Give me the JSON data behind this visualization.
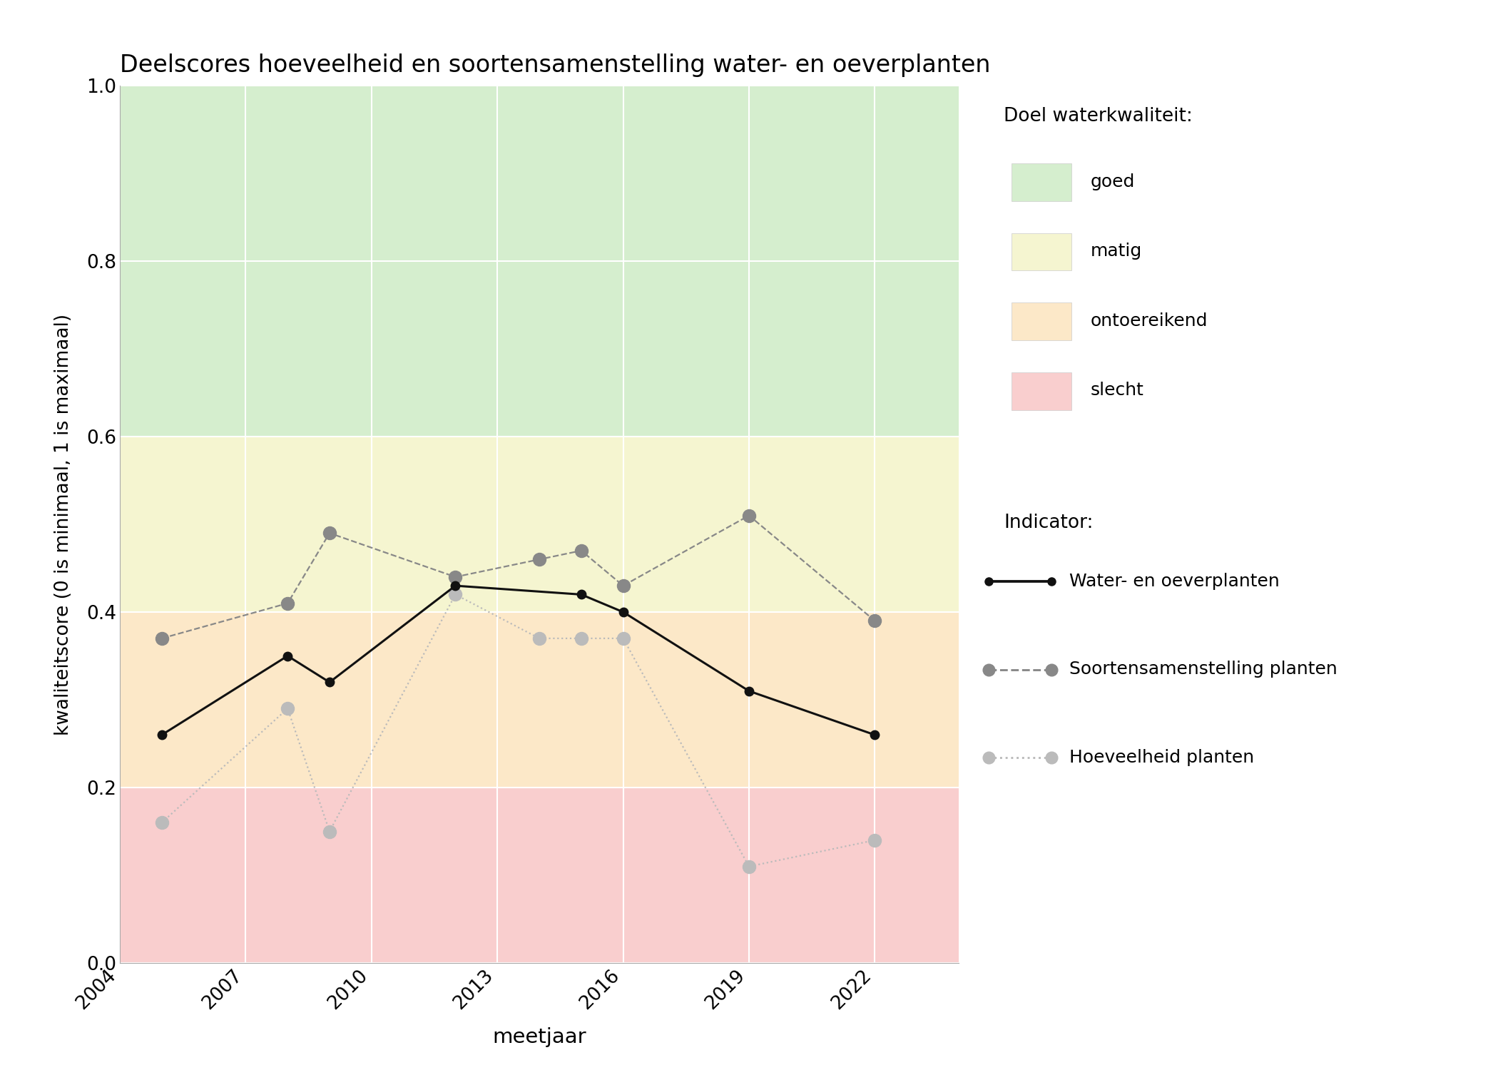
{
  "title": "Deelscores hoeveelheid en soortensamenstelling water- en oeverplanten",
  "xlabel": "meetjaar",
  "ylabel": "kwaliteitscore (0 is minimaal, 1 is maximaal)",
  "ylim": [
    0.0,
    1.0
  ],
  "xlim": [
    2004,
    2024
  ],
  "xticks": [
    2004,
    2007,
    2010,
    2013,
    2016,
    2019,
    2022
  ],
  "yticks": [
    0.0,
    0.2,
    0.4,
    0.6,
    0.8,
    1.0
  ],
  "bg_color": "#ffffff",
  "plot_bg_color": "#ffffff",
  "quality_bands": {
    "goed": {
      "ymin": 0.6,
      "ymax": 1.0,
      "color": "#d5eece"
    },
    "matig": {
      "ymin": 0.4,
      "ymax": 0.6,
      "color": "#f5f5d0"
    },
    "ontoereikend": {
      "ymin": 0.2,
      "ymax": 0.4,
      "color": "#fce8c8"
    },
    "slecht": {
      "ymin": 0.0,
      "ymax": 0.2,
      "color": "#f9cece"
    }
  },
  "series": {
    "water_oeverplanten": {
      "years": [
        2005,
        2008,
        2009,
        2012,
        2015,
        2016,
        2019,
        2022
      ],
      "values": [
        0.26,
        0.35,
        0.32,
        0.43,
        0.42,
        0.4,
        0.31,
        0.26
      ],
      "color": "#111111",
      "linestyle": "solid",
      "linewidth": 2.2,
      "markersize": 9,
      "marker": "o",
      "label": "Water- en oeverplanten",
      "zorder": 5
    },
    "soortensamenstelling": {
      "years": [
        2005,
        2008,
        2009,
        2012,
        2014,
        2015,
        2016,
        2019,
        2022
      ],
      "values": [
        0.37,
        0.41,
        0.49,
        0.44,
        0.46,
        0.47,
        0.43,
        0.51,
        0.39
      ],
      "color": "#888888",
      "linestyle": "dashed",
      "linewidth": 1.6,
      "markersize": 13,
      "marker": "o",
      "label": "Soortensamenstelling planten",
      "zorder": 4
    },
    "hoeveelheid": {
      "years": [
        2005,
        2008,
        2009,
        2012,
        2014,
        2015,
        2016,
        2019,
        2022
      ],
      "values": [
        0.16,
        0.29,
        0.15,
        0.42,
        0.37,
        0.37,
        0.37,
        0.11,
        0.14
      ],
      "color": "#bbbbbb",
      "linestyle": "dotted",
      "linewidth": 1.6,
      "markersize": 13,
      "marker": "o",
      "label": "Hoeveelheid planten",
      "zorder": 3
    }
  },
  "legend_quality_title": "Doel waterkwaliteit:",
  "legend_indicator_title": "Indicator:",
  "legend_quality_items": [
    {
      "label": "goed",
      "color": "#d5eece"
    },
    {
      "label": "matig",
      "color": "#f5f5d0"
    },
    {
      "label": "ontoereikend",
      "color": "#fce8c8"
    },
    {
      "label": "slecht",
      "color": "#f9cece"
    }
  ]
}
